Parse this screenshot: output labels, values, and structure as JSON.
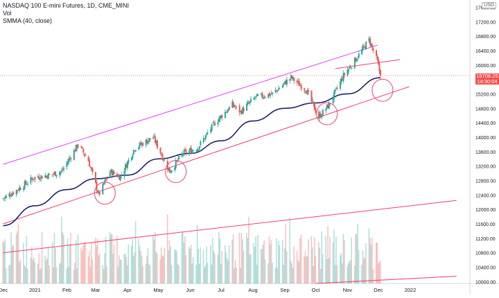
{
  "legend": {
    "title": "NASDAQ 100 E-mini Futures, 1D, CME_MINI",
    "vol": "Vol",
    "smma": "SMMA (40, close)"
  },
  "currency_badge": "USD",
  "price_badge": {
    "price": "15708.25",
    "countdown": "14:30:04"
  },
  "colors": {
    "up": "#26a69a",
    "down": "#ef5350",
    "channel": "#e040fb",
    "trendline": "#f23d6d",
    "smma": "#1c1f6b",
    "vol_up": "rgba(38,166,154,0.35)",
    "vol_down": "rgba(239,83,80,0.35)",
    "circle": "#f23d6d"
  },
  "chart_data": {
    "type": "candlestick",
    "x_tick_labels": [
      "Dec",
      "2021",
      "Feb",
      "Mar",
      "Apr",
      "May",
      "Jun",
      "Jul",
      "Aug",
      "Sep",
      "Oct",
      "Nov",
      "Dec",
      "2022"
    ],
    "y_tick_labels": [
      10000,
      10400,
      10800,
      11200,
      11600,
      12000,
      12400,
      12800,
      13200,
      13600,
      14000,
      14400,
      14800,
      15200,
      15600,
      16000,
      16400,
      16800,
      17200,
      17600
    ],
    "ylim": [
      9950,
      17800
    ],
    "last_price": 15708.25,
    "price_path": [
      {
        "date": "2020-12-01",
        "close": 12300
      },
      {
        "date": "2020-12-15",
        "close": 12550
      },
      {
        "date": "2020-12-31",
        "close": 12880
      },
      {
        "date": "2021-01-15",
        "close": 12950
      },
      {
        "date": "2021-01-27",
        "close": 13050
      },
      {
        "date": "2021-02-12",
        "close": 13800
      },
      {
        "date": "2021-02-22",
        "close": 13350
      },
      {
        "date": "2021-03-04",
        "close": 12400
      },
      {
        "date": "2021-03-15",
        "close": 13050
      },
      {
        "date": "2021-03-25",
        "close": 12900
      },
      {
        "date": "2021-04-08",
        "close": 13700
      },
      {
        "date": "2021-04-26",
        "close": 14000
      },
      {
        "date": "2021-05-12",
        "close": 13050
      },
      {
        "date": "2021-05-25",
        "close": 13550
      },
      {
        "date": "2021-06-08",
        "close": 13700
      },
      {
        "date": "2021-06-25",
        "close": 14400
      },
      {
        "date": "2021-07-12",
        "close": 14900
      },
      {
        "date": "2021-07-20",
        "close": 14700
      },
      {
        "date": "2021-08-03",
        "close": 15100
      },
      {
        "date": "2021-08-20",
        "close": 15200
      },
      {
        "date": "2021-09-07",
        "close": 15650
      },
      {
        "date": "2021-09-22",
        "close": 15300
      },
      {
        "date": "2021-10-04",
        "close": 14550
      },
      {
        "date": "2021-10-14",
        "close": 14900
      },
      {
        "date": "2021-10-28",
        "close": 15700
      },
      {
        "date": "2021-11-10",
        "close": 16200
      },
      {
        "date": "2021-11-22",
        "close": 16700
      },
      {
        "date": "2021-11-30",
        "close": 16100
      },
      {
        "date": "2021-12-03",
        "close": 15708.25
      }
    ],
    "smma_path": [
      {
        "date": "2020-12-01",
        "value": 11550
      },
      {
        "date": "2021-01-01",
        "value": 12100
      },
      {
        "date": "2021-02-01",
        "value": 12550
      },
      {
        "date": "2021-03-01",
        "value": 12850
      },
      {
        "date": "2021-04-01",
        "value": 12950
      },
      {
        "date": "2021-05-01",
        "value": 13400
      },
      {
        "date": "2021-06-01",
        "value": 13550
      },
      {
        "date": "2021-07-01",
        "value": 13900
      },
      {
        "date": "2021-08-01",
        "value": 14450
      },
      {
        "date": "2021-09-01",
        "value": 14800
      },
      {
        "date": "2021-10-01",
        "value": 14950
      },
      {
        "date": "2021-11-01",
        "value": 15200
      },
      {
        "date": "2021-12-03",
        "value": 15650
      }
    ],
    "channel_upper": [
      {
        "date": "2020-12-01",
        "value": 13250
      },
      {
        "date": "2021-11-30",
        "value": 16550
      }
    ],
    "channel_mid": [
      {
        "date": "2021-10-20",
        "value": 15900
      },
      {
        "date": "2021-12-22",
        "value": 16150
      }
    ],
    "lower_trendline": [
      {
        "date": "2020-12-01",
        "value": 11600
      },
      {
        "date": "2021-12-31",
        "value": 15400
      }
    ],
    "long_trendline": [
      {
        "date": "2020-12-01",
        "value": 10800
      },
      {
        "date": "2022-02-15",
        "value": 12250
      }
    ],
    "bottom_trendline": [
      {
        "date": "2021-10-01",
        "value": 9950
      },
      {
        "date": "2022-02-15",
        "value": 10150
      }
    ],
    "highlight_circles": [
      {
        "date": "2021-03-10",
        "value": 12450
      },
      {
        "date": "2021-05-18",
        "value": 13050
      },
      {
        "date": "2021-10-12",
        "value": 14650
      },
      {
        "date": "2021-12-05",
        "value": 15300
      }
    ]
  }
}
